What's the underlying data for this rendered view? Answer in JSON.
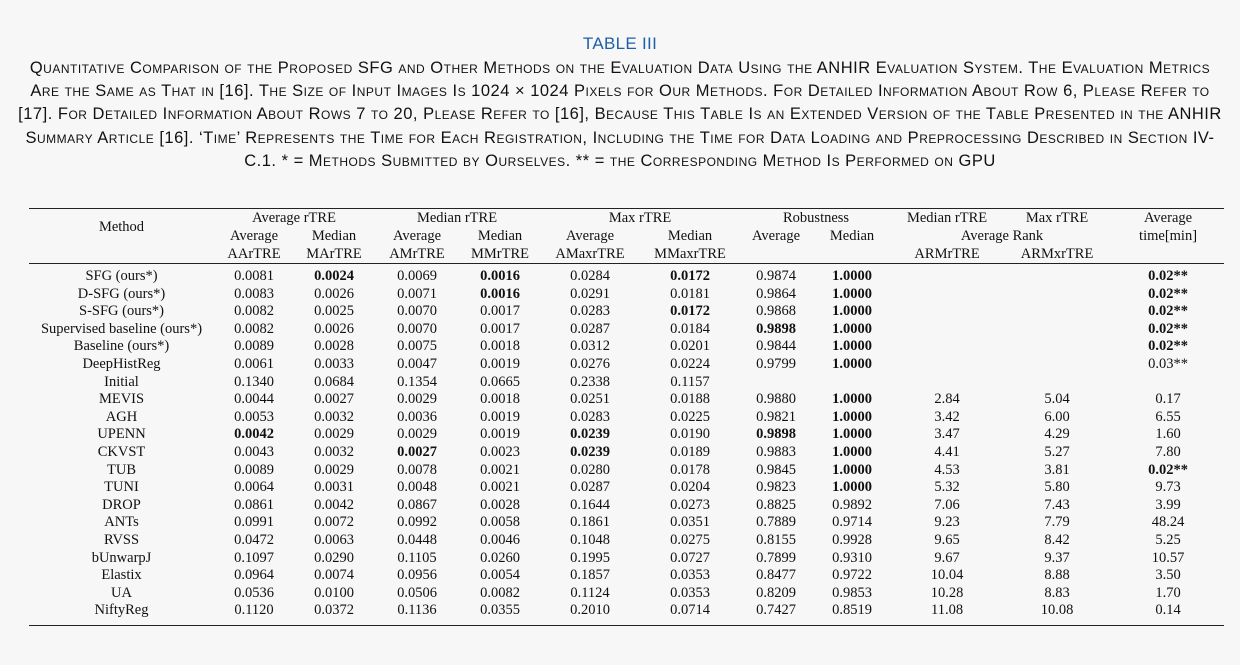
{
  "table_number": "TABLE III",
  "caption": "Quantitative Comparison of the Proposed SFG and Other Methods on the Evaluation Data Using the ANHIR Evaluation System. The Evaluation Metrics Are the Same as That in [16]. The Size of Input Images Is 1024 × 1024 Pixels for Our Methods. For Detailed Information About Row 6, Please Refer to [17]. For Detailed Information About Rows 7 to 20, Please Refer to [16], Because This Table Is an Extended Version of the Table Presented in the ANHIR Summary Article [16]. ‘Time’ Represents the Time for Each Registration, Including the Time for Data Loading and Preprocessing Described in Section IV-C.1. * = Methods Submitted by Ourselves. ** = the Corresponding Method Is Performed on GPU",
  "header": {
    "method": "Method",
    "avg_rtre": "Average rTRE",
    "med_rtre": "Median rTRE",
    "max_rtre": "Max rTRE",
    "robustness": "Robustness",
    "median_rtre_rank": "Median rTRE",
    "max_rtre_rank": "Max rTRE",
    "average_rank": "Average Rank",
    "average": "Average",
    "time_min": "time[min]",
    "sub_average": "Average",
    "sub_median": "Median",
    "aartre": "AArTRE",
    "martre": "MArTRE",
    "amrtre": "AMrTRE",
    "mmrtre": "MMrTRE",
    "amaxrtre": "AMaxrTRE",
    "mmaxrtre": "MMaxrTRE",
    "armrtre": "ARMrTRE",
    "armxrtre": "ARMxrTRE"
  },
  "rows": [
    {
      "method": "SFG (ours*)",
      "cells": [
        "0.0081",
        "0.0024",
        "0.0069",
        "0.0016",
        "0.0284",
        "0.0172",
        "0.9874",
        "1.0000",
        "",
        "",
        "0.02**"
      ],
      "bold": [
        1,
        3,
        5,
        7,
        10
      ]
    },
    {
      "method": "D-SFG (ours*)",
      "cells": [
        "0.0083",
        "0.0026",
        "0.0071",
        "0.0016",
        "0.0291",
        "0.0181",
        "0.9864",
        "1.0000",
        "",
        "",
        "0.02**"
      ],
      "bold": [
        3,
        7,
        10
      ]
    },
    {
      "method": "S-SFG (ours*)",
      "cells": [
        "0.0082",
        "0.0025",
        "0.0070",
        "0.0017",
        "0.0283",
        "0.0172",
        "0.9868",
        "1.0000",
        "",
        "",
        "0.02**"
      ],
      "bold": [
        5,
        7,
        10
      ]
    },
    {
      "method": "Supervised baseline (ours*)",
      "cells": [
        "0.0082",
        "0.0026",
        "0.0070",
        "0.0017",
        "0.0287",
        "0.0184",
        "0.9898",
        "1.0000",
        "",
        "",
        "0.02**"
      ],
      "bold": [
        6,
        7,
        10
      ]
    },
    {
      "method": "Baseline (ours*)",
      "cells": [
        "0.0089",
        "0.0028",
        "0.0075",
        "0.0018",
        "0.0312",
        "0.0201",
        "0.9844",
        "1.0000",
        "",
        "",
        "0.02**"
      ],
      "bold": [
        7,
        10
      ]
    },
    {
      "method": "DeepHistReg",
      "cells": [
        "0.0061",
        "0.0033",
        "0.0047",
        "0.0019",
        "0.0276",
        "0.0224",
        "0.9799",
        "1.0000",
        "",
        "",
        "0.03**"
      ],
      "bold": [
        7
      ]
    },
    {
      "method": "Initial",
      "cells": [
        "0.1340",
        "0.0684",
        "0.1354",
        "0.0665",
        "0.2338",
        "0.1157",
        "",
        "",
        "",
        "",
        ""
      ],
      "bold": []
    },
    {
      "method": "MEVIS",
      "cells": [
        "0.0044",
        "0.0027",
        "0.0029",
        "0.0018",
        "0.0251",
        "0.0188",
        "0.9880",
        "1.0000",
        "2.84",
        "5.04",
        "0.17"
      ],
      "bold": [
        7
      ]
    },
    {
      "method": "AGH",
      "cells": [
        "0.0053",
        "0.0032",
        "0.0036",
        "0.0019",
        "0.0283",
        "0.0225",
        "0.9821",
        "1.0000",
        "3.42",
        "6.00",
        "6.55"
      ],
      "bold": [
        7
      ]
    },
    {
      "method": "UPENN",
      "cells": [
        "0.0042",
        "0.0029",
        "0.0029",
        "0.0019",
        "0.0239",
        "0.0190",
        "0.9898",
        "1.0000",
        "3.47",
        "4.29",
        "1.60"
      ],
      "bold": [
        0,
        4,
        6,
        7
      ]
    },
    {
      "method": "CKVST",
      "cells": [
        "0.0043",
        "0.0032",
        "0.0027",
        "0.0023",
        "0.0239",
        "0.0189",
        "0.9883",
        "1.0000",
        "4.41",
        "5.27",
        "7.80"
      ],
      "bold": [
        2,
        4,
        7
      ]
    },
    {
      "method": "TUB",
      "cells": [
        "0.0089",
        "0.0029",
        "0.0078",
        "0.0021",
        "0.0280",
        "0.0178",
        "0.9845",
        "1.0000",
        "4.53",
        "3.81",
        "0.02**"
      ],
      "bold": [
        7,
        10
      ]
    },
    {
      "method": "TUNI",
      "cells": [
        "0.0064",
        "0.0031",
        "0.0048",
        "0.0021",
        "0.0287",
        "0.0204",
        "0.9823",
        "1.0000",
        "5.32",
        "5.80",
        "9.73"
      ],
      "bold": [
        7
      ]
    },
    {
      "method": "DROP",
      "cells": [
        "0.0861",
        "0.0042",
        "0.0867",
        "0.0028",
        "0.1644",
        "0.0273",
        "0.8825",
        "0.9892",
        "7.06",
        "7.43",
        "3.99"
      ],
      "bold": []
    },
    {
      "method": "ANTs",
      "cells": [
        "0.0991",
        "0.0072",
        "0.0992",
        "0.0058",
        "0.1861",
        "0.0351",
        "0.7889",
        "0.9714",
        "9.23",
        "7.79",
        "48.24"
      ],
      "bold": []
    },
    {
      "method": "RVSS",
      "cells": [
        "0.0472",
        "0.0063",
        "0.0448",
        "0.0046",
        "0.1048",
        "0.0275",
        "0.8155",
        "0.9928",
        "9.65",
        "8.42",
        "5.25"
      ],
      "bold": []
    },
    {
      "method": "bUnwarpJ",
      "cells": [
        "0.1097",
        "0.0290",
        "0.1105",
        "0.0260",
        "0.1995",
        "0.0727",
        "0.7899",
        "0.9310",
        "9.67",
        "9.37",
        "10.57"
      ],
      "bold": []
    },
    {
      "method": "Elastix",
      "cells": [
        "0.0964",
        "0.0074",
        "0.0956",
        "0.0054",
        "0.1857",
        "0.0353",
        "0.8477",
        "0.9722",
        "10.04",
        "8.88",
        "3.50"
      ],
      "bold": []
    },
    {
      "method": "UA",
      "cells": [
        "0.0536",
        "0.0100",
        "0.0506",
        "0.0082",
        "0.1124",
        "0.0353",
        "0.8209",
        "0.9853",
        "10.28",
        "8.83",
        "1.70"
      ],
      "bold": []
    },
    {
      "method": "NiftyReg",
      "cells": [
        "0.1120",
        "0.0372",
        "0.1136",
        "0.0355",
        "0.2010",
        "0.0714",
        "0.7427",
        "0.8519",
        "11.08",
        "10.08",
        "0.14"
      ],
      "bold": []
    }
  ]
}
